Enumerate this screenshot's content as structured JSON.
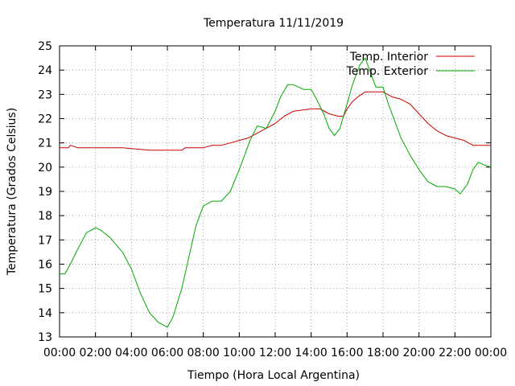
{
  "chart_data": {
    "type": "line",
    "title": "Temperatura 11/11/2019",
    "xlabel": "Tiempo (Hora Local Argentina)",
    "ylabel": "Temperatura (Grados Celsius)",
    "xlim": [
      0,
      24
    ],
    "ylim": [
      13,
      25
    ],
    "grid": true,
    "legend_position": "top-right",
    "x_ticks": [
      "00:00",
      "02:00",
      "04:00",
      "06:00",
      "08:00",
      "10:00",
      "12:00",
      "14:00",
      "16:00",
      "18:00",
      "20:00",
      "22:00",
      "00:00"
    ],
    "y_ticks": [
      "13",
      "14",
      "15",
      "16",
      "17",
      "18",
      "19",
      "20",
      "21",
      "22",
      "23",
      "24",
      "25"
    ],
    "series": [
      {
        "name": "Temp. Interior",
        "color": "#cc0000",
        "x": [
          0,
          0.5,
          0.6,
          1,
          2,
          2.5,
          3,
          3.5,
          5,
          6,
          6.8,
          7,
          7.5,
          8,
          8.5,
          9,
          9.5,
          10,
          10.5,
          11,
          11.5,
          12,
          12.5,
          13,
          14,
          14.5,
          15,
          15.5,
          15.8,
          16,
          16.3,
          16.6,
          17,
          17.5,
          18,
          18.5,
          19,
          19.5,
          20,
          20.5,
          21,
          21.5,
          22,
          22.5,
          23,
          23.5,
          24
        ],
        "y": [
          20.8,
          20.8,
          20.9,
          20.8,
          20.8,
          20.8,
          20.8,
          20.8,
          20.7,
          20.7,
          20.7,
          20.8,
          20.8,
          20.8,
          20.9,
          20.9,
          21.0,
          21.1,
          21.2,
          21.4,
          21.6,
          21.8,
          22.1,
          22.3,
          22.4,
          22.4,
          22.2,
          22.1,
          22.1,
          22.4,
          22.7,
          22.9,
          23.1,
          23.1,
          23.1,
          22.9,
          22.8,
          22.6,
          22.2,
          21.8,
          21.5,
          21.3,
          21.2,
          21.1,
          20.9,
          20.9,
          20.9
        ]
      },
      {
        "name": "Temp. Exterior",
        "color": "#00aa00",
        "x": [
          0,
          0.3,
          0.6,
          1,
          1.5,
          2,
          2.3,
          2.8,
          3.5,
          4,
          4.5,
          5,
          5.5,
          6,
          6.3,
          6.8,
          7.2,
          7.6,
          8,
          8.5,
          9,
          9.5,
          10,
          10.3,
          10.6,
          11,
          11.5,
          12,
          12.3,
          12.7,
          13,
          13.3,
          13.6,
          14,
          14.3,
          14.7,
          15,
          15.3,
          15.6,
          16,
          16.3,
          16.7,
          17,
          17.3,
          17.6,
          18,
          18.3,
          18.7,
          19,
          19.5,
          20,
          20.5,
          21,
          21.5,
          22,
          22.3,
          22.7,
          23,
          23.3,
          23.6,
          24
        ],
        "y": [
          15.6,
          15.6,
          16.0,
          16.6,
          17.3,
          17.5,
          17.4,
          17.1,
          16.5,
          15.8,
          14.8,
          14.0,
          13.6,
          13.4,
          13.8,
          15.0,
          16.3,
          17.6,
          18.4,
          18.6,
          18.6,
          19.0,
          19.9,
          20.5,
          21.1,
          21.7,
          21.6,
          22.3,
          22.9,
          23.4,
          23.4,
          23.3,
          23.2,
          23.2,
          22.8,
          22.2,
          21.6,
          21.3,
          21.6,
          22.6,
          23.4,
          24.2,
          24.5,
          23.9,
          23.3,
          23.3,
          22.6,
          21.8,
          21.2,
          20.5,
          19.9,
          19.4,
          19.2,
          19.2,
          19.1,
          18.9,
          19.3,
          19.9,
          20.2,
          20.1,
          20.0
        ]
      }
    ]
  }
}
